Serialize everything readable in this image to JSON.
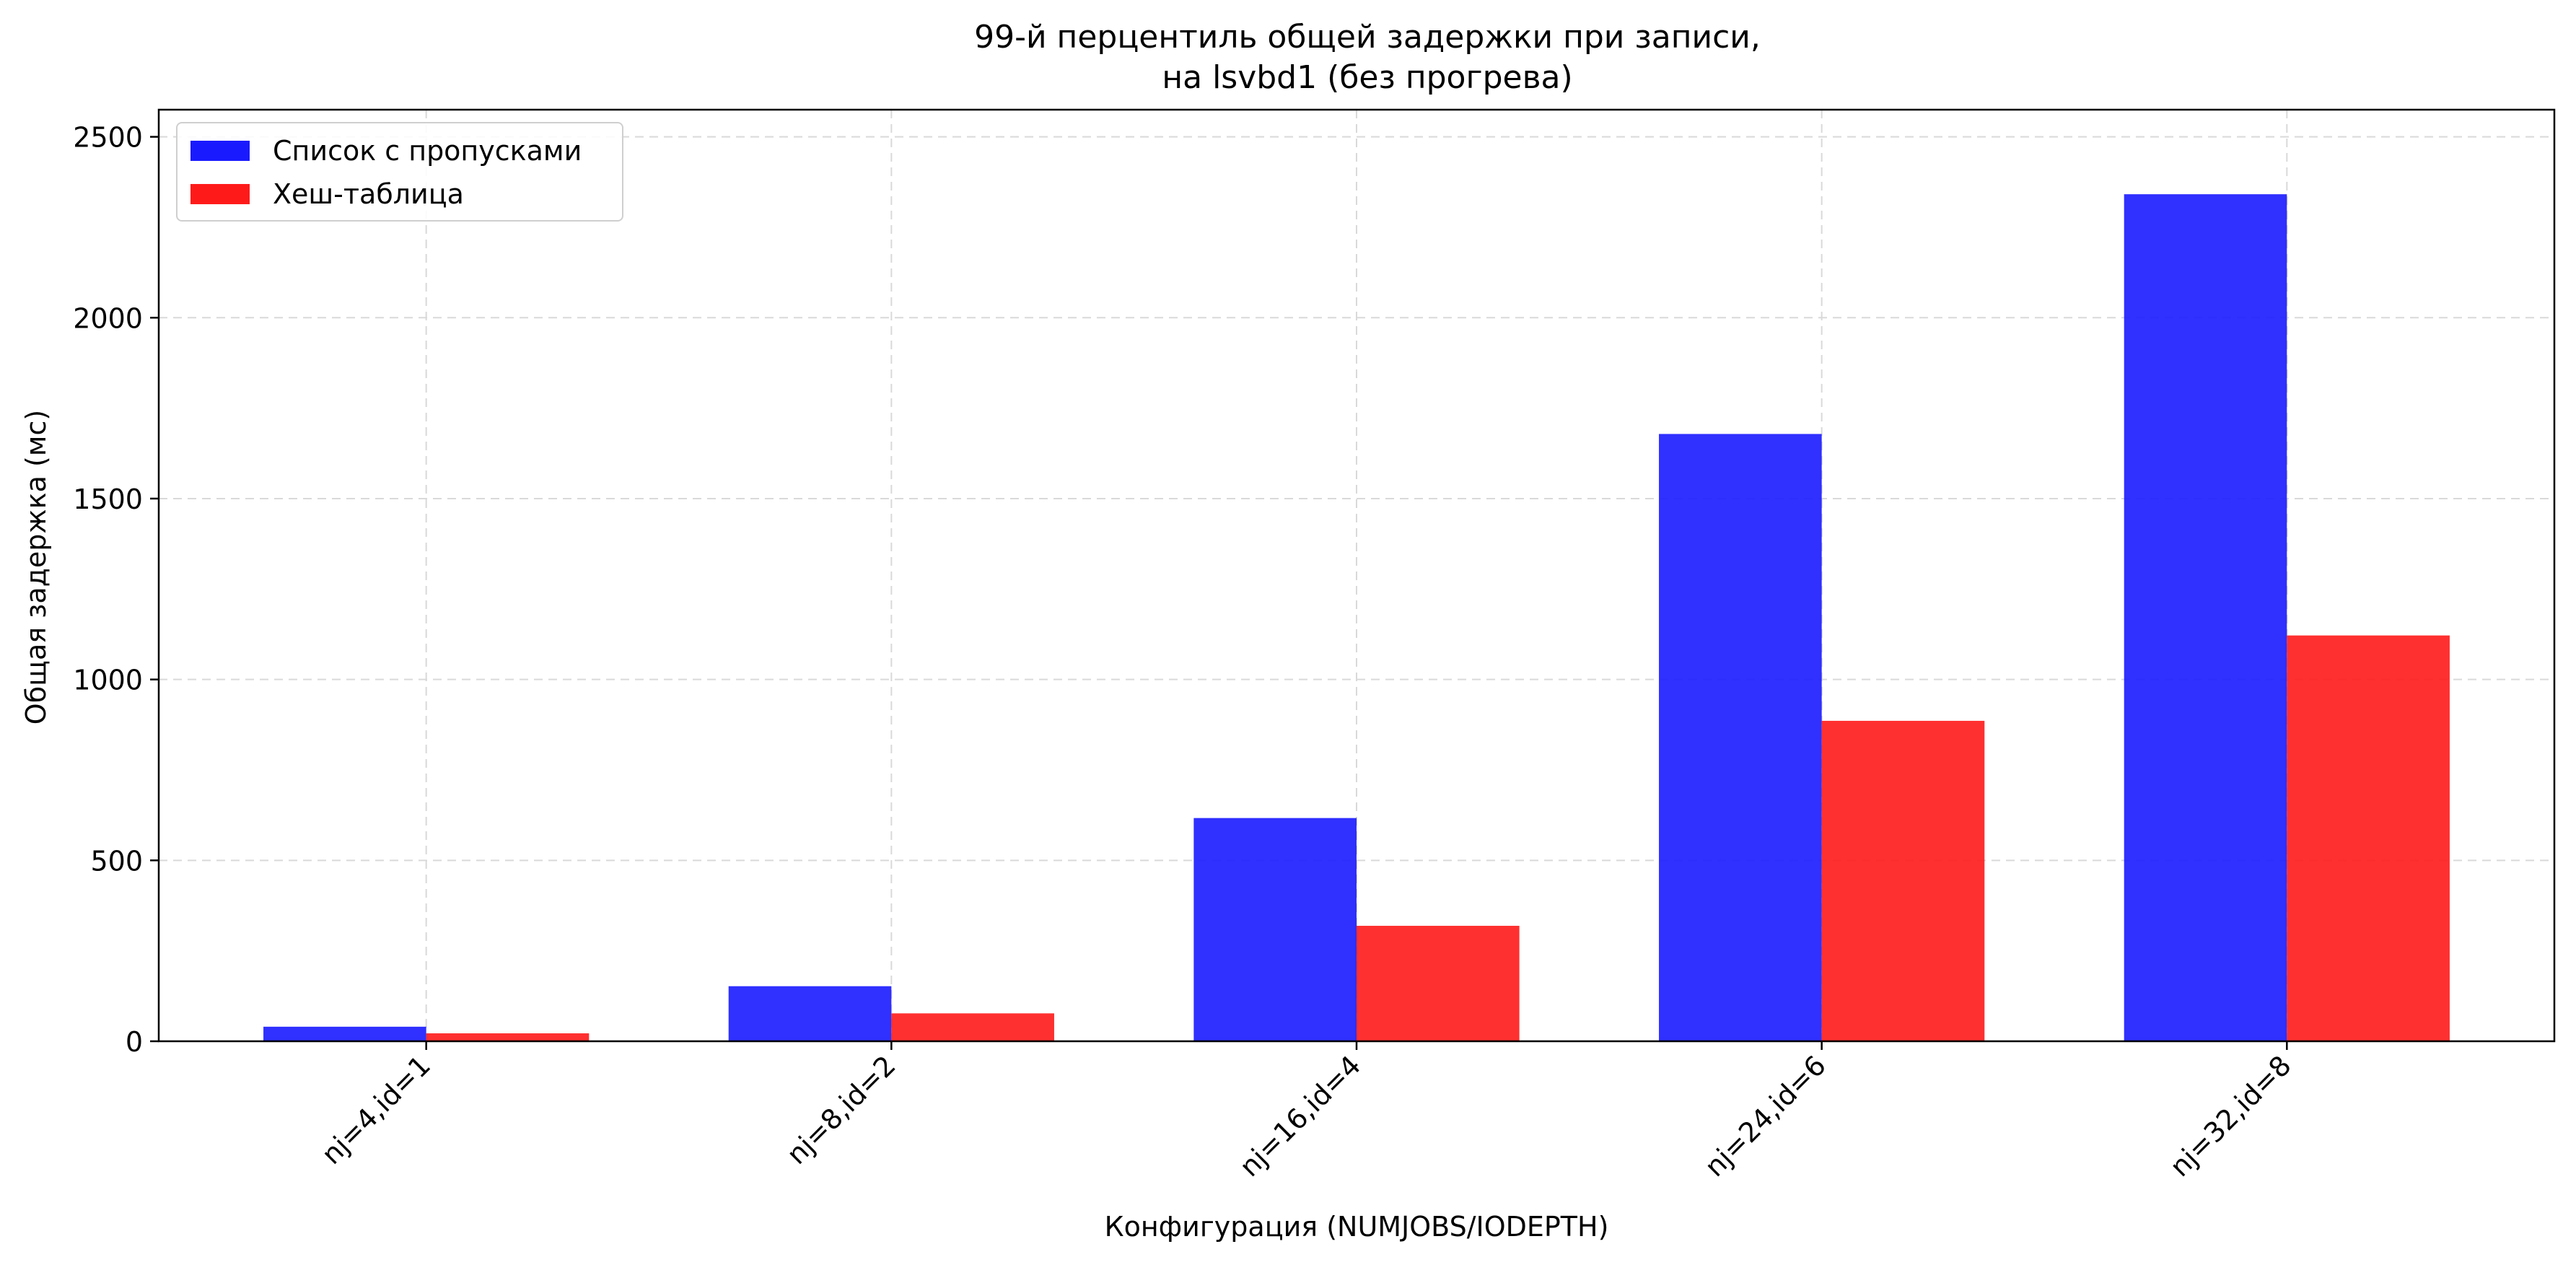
{
  "chart_data": {
    "type": "bar",
    "title": [
      "99-й перцентиль общей задержки при записи,",
      "на lsvbd1 (без прогрева)"
    ],
    "xlabel": "Конфигурация (NUMJOBS/IODEPTH)",
    "ylabel": "Общая задержка (мс)",
    "categories": [
      "nj=4,id=1",
      "nj=8,id=2",
      "nj=16,id=4",
      "nj=24,id=6",
      "nj=32,id=8"
    ],
    "series": [
      {
        "name": "Список с пропусками",
        "color": "#1a1aff",
        "values": [
          40.2,
          152.2,
          617.0,
          1678.6,
          2341.3
        ]
      },
      {
        "name": "Хеш-таблица",
        "color": "#ff1a1a",
        "values": [
          21.9,
          77.1,
          319.1,
          885.7,
          1121.7
        ]
      }
    ],
    "yticks": [
      0,
      500,
      1000,
      1500,
      2000,
      2500
    ],
    "ylim": [
      0,
      2575
    ],
    "grid": true,
    "legend_position": "top-left"
  }
}
